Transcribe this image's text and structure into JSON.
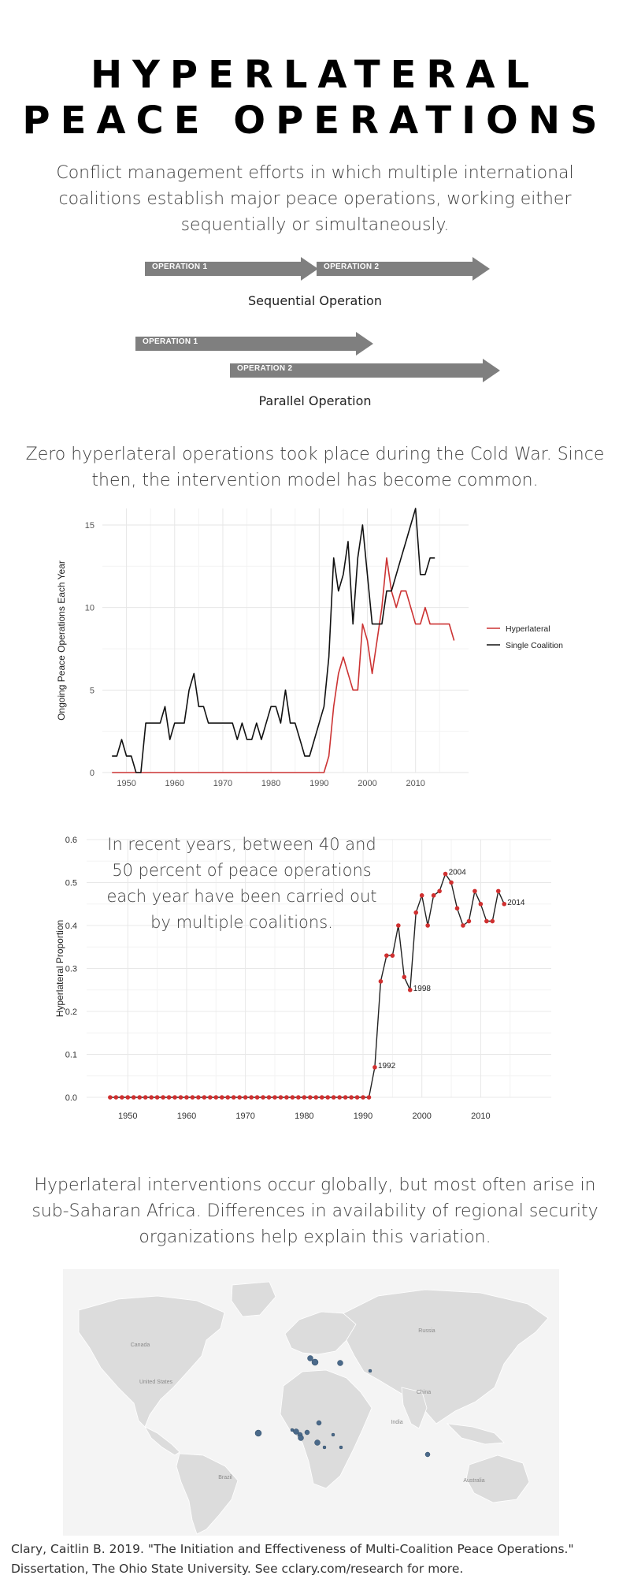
{
  "header": {
    "title_line1": "HYPERLATERAL",
    "title_line2": "PEACE OPERATIONS",
    "definition": "Conflict management efforts in which multiple international coalitions establish major peace operations, working either sequentially or simultaneously."
  },
  "diagrams": {
    "sequential": {
      "op1": "OPERATION 1",
      "op2": "OPERATION 2",
      "caption": "Sequential Operation"
    },
    "parallel": {
      "op1": "OPERATION 1",
      "op2": "OPERATION 2",
      "caption": "Parallel Operation"
    }
  },
  "section2": {
    "text": "Zero hyperlateral operations took place during the Cold War. Since then, the intervention model has become common."
  },
  "section3": {
    "text": "In recent years, between 40 and 50 percent of peace operations each year have been carried out by multiple coalitions."
  },
  "section4": {
    "text": "Hyperlateral interventions occur globally, but most often arise in sub-Saharan Africa. Differences in availability of regional security organizations help explain this variation."
  },
  "map": {
    "labels": [
      "Canada",
      "United States",
      "Brazil",
      "Russia",
      "China",
      "India",
      "Australia"
    ],
    "point_color": "#4b6a8a",
    "land_color": "#dcdcdc"
  },
  "footer": {
    "line1": "Clary, Caitlin B. 2019. \"The Initiation and Effectiveness of Multi-Coalition Peace Operations.\"",
    "line2": "Dissertation, The Ohio State University. See cclary.com/research for more."
  },
  "chart_data": [
    {
      "type": "line",
      "title": "",
      "xlabel": "",
      "ylabel": "Ongoing Peace Operations Each Year",
      "xlim": [
        1945,
        2021
      ],
      "ylim": [
        0,
        16
      ],
      "xticks": [
        1950,
        1960,
        1970,
        1980,
        1990,
        2000,
        2010
      ],
      "yticks": [
        0,
        5,
        10,
        15
      ],
      "legend": "right",
      "series": [
        {
          "name": "Hyperlateral",
          "color": "#cc3333",
          "x": [
            1947,
            1990,
            1991,
            1992,
            1993,
            1994,
            1995,
            1996,
            1997,
            1998,
            1999,
            2000,
            2001,
            2002,
            2003,
            2004,
            2005,
            2006,
            2007,
            2008,
            2009,
            2010,
            2011,
            2012,
            2013,
            2014,
            2015,
            2016,
            2017,
            2018
          ],
          "y": [
            0,
            0,
            0,
            1,
            4,
            6,
            7,
            6,
            5,
            5,
            9,
            8,
            6,
            8,
            10,
            13,
            11,
            10,
            11,
            11,
            10,
            9,
            9,
            10,
            9,
            9,
            9,
            9,
            9,
            8
          ]
        },
        {
          "name": "Single Coalition",
          "color": "#111111",
          "x": [
            1947,
            1948,
            1949,
            1950,
            1951,
            1952,
            1953,
            1954,
            1955,
            1956,
            1957,
            1958,
            1959,
            1960,
            1961,
            1962,
            1963,
            1964,
            1965,
            1966,
            1967,
            1968,
            1969,
            1970,
            1971,
            1972,
            1973,
            1974,
            1975,
            1976,
            1977,
            1978,
            1979,
            1980,
            1981,
            1982,
            1983,
            1984,
            1985,
            1986,
            1987,
            1988,
            1989,
            1990,
            1991,
            1992,
            1993,
            1994,
            1995,
            1996,
            1997,
            1998,
            1999,
            2000,
            2001,
            2002,
            2003,
            2004,
            2005,
            2006,
            2007,
            2008,
            2009,
            2010,
            2011,
            2012,
            2013,
            2014
          ],
          "y": [
            1,
            1,
            2,
            1,
            1,
            0,
            0,
            3,
            3,
            3,
            3,
            4,
            2,
            3,
            3,
            3,
            5,
            6,
            4,
            4,
            3,
            3,
            3,
            3,
            3,
            3,
            2,
            3,
            2,
            2,
            3,
            2,
            3,
            4,
            4,
            3,
            5,
            3,
            3,
            2,
            1,
            1,
            2,
            3,
            4,
            7,
            13,
            11,
            12,
            14,
            9,
            13,
            15,
            12,
            9,
            9,
            9,
            11,
            11,
            12,
            13,
            14,
            15,
            16,
            12,
            12,
            13,
            13
          ]
        }
      ]
    },
    {
      "type": "line",
      "title": "",
      "xlabel": "",
      "ylabel": "Hyperlateral Proportion",
      "xlim": [
        1943,
        2022
      ],
      "ylim": [
        0,
        0.6
      ],
      "xticks": [
        1950,
        1960,
        1970,
        1980,
        1990,
        2000,
        2010
      ],
      "yticks": [
        0.0,
        0.1,
        0.2,
        0.3,
        0.4,
        0.5,
        0.6
      ],
      "series": [
        {
          "name": "Hyperlateral Proportion",
          "color": "#222222",
          "marker_color": "#d03030",
          "x": [
            1947,
            1948,
            1949,
            1950,
            1951,
            1952,
            1953,
            1954,
            1955,
            1956,
            1957,
            1958,
            1959,
            1960,
            1961,
            1962,
            1963,
            1964,
            1965,
            1966,
            1967,
            1968,
            1969,
            1970,
            1971,
            1972,
            1973,
            1974,
            1975,
            1976,
            1977,
            1978,
            1979,
            1980,
            1981,
            1982,
            1983,
            1984,
            1985,
            1986,
            1987,
            1988,
            1989,
            1990,
            1991,
            1992,
            1993,
            1994,
            1995,
            1996,
            1997,
            1998,
            1999,
            2000,
            2001,
            2002,
            2003,
            2004,
            2005,
            2006,
            2007,
            2008,
            2009,
            2010,
            2011,
            2012,
            2013,
            2014
          ],
          "y": [
            0,
            0,
            0,
            0,
            0,
            0,
            0,
            0,
            0,
            0,
            0,
            0,
            0,
            0,
            0,
            0,
            0,
            0,
            0,
            0,
            0,
            0,
            0,
            0,
            0,
            0,
            0,
            0,
            0,
            0,
            0,
            0,
            0,
            0,
            0,
            0,
            0,
            0,
            0,
            0,
            0,
            0,
            0,
            0,
            0,
            0.07,
            0.27,
            0.33,
            0.33,
            0.4,
            0.28,
            0.25,
            0.43,
            0.47,
            0.4,
            0.47,
            0.48,
            0.52,
            0.5,
            0.44,
            0.4,
            0.41,
            0.48,
            0.45,
            0.41,
            0.41,
            0.48,
            0.45
          ]
        }
      ],
      "annotations": [
        {
          "x": 1992,
          "y": 0.07,
          "text": "1992"
        },
        {
          "x": 1998,
          "y": 0.25,
          "text": "1998"
        },
        {
          "x": 2004,
          "y": 0.52,
          "text": "2004"
        },
        {
          "x": 2014,
          "y": 0.45,
          "text": "2014"
        }
      ]
    }
  ]
}
